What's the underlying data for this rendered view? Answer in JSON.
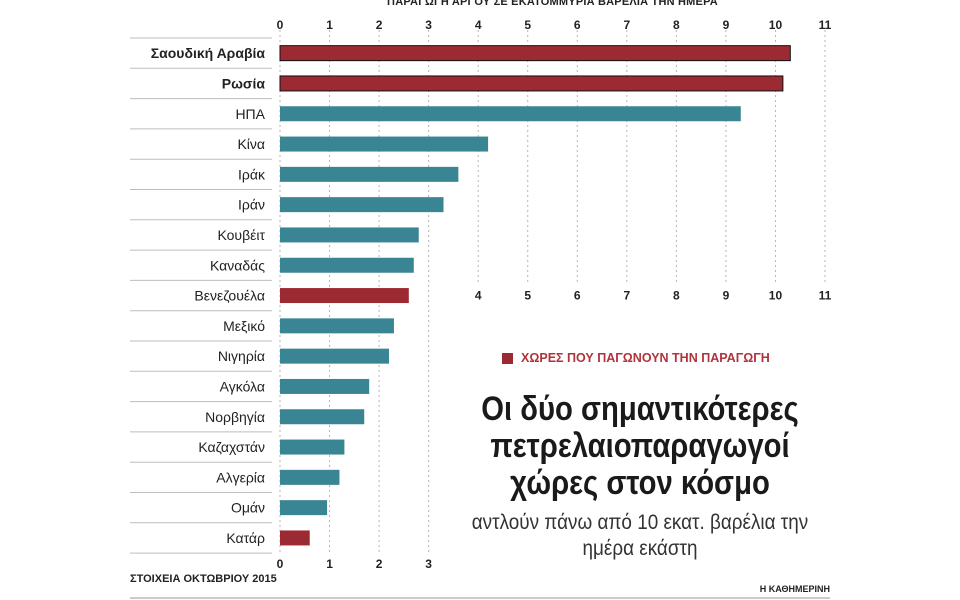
{
  "chart_data": {
    "type": "bar",
    "orientation": "horizontal",
    "xlabel": "ΠΑΡΑΓΩΓΗ ΑΡΓΟΥ ΣΕ ΕΚΑΤΟΜΜΥΡΙΑ ΒΑΡΕΛΙΑ ΤΗΝ ΗΜΕΡΑ",
    "xlim": [
      0,
      11
    ],
    "xticks": [
      0,
      1,
      2,
      3,
      4,
      5,
      6,
      7,
      8,
      9,
      10,
      11
    ],
    "categories": [
      "Σαουδική Αραβία",
      "Ρωσία",
      "ΗΠΑ",
      "Κίνα",
      "Ιράκ",
      "Ιράν",
      "Κουβέιτ",
      "Καναδάς",
      "Βενεζουέλα",
      "Μεξικό",
      "Νιγηρία",
      "Αγκόλα",
      "Νορβηγία",
      "Καζαχστάν",
      "Αλγερία",
      "Ομάν",
      "Κατάρ"
    ],
    "values": [
      10.3,
      10.15,
      9.3,
      4.2,
      3.6,
      3.3,
      2.8,
      2.7,
      2.6,
      2.3,
      2.2,
      1.8,
      1.7,
      1.3,
      1.2,
      0.95,
      0.6
    ],
    "freezing": [
      true,
      true,
      false,
      false,
      false,
      false,
      false,
      false,
      true,
      false,
      false,
      false,
      false,
      false,
      false,
      false,
      true
    ],
    "bold_labels": [
      true,
      true,
      false,
      false,
      false,
      false,
      false,
      false,
      false,
      false,
      false,
      false,
      false,
      false,
      false,
      false,
      false
    ],
    "grid": true,
    "colors": {
      "normal": "#3a8593",
      "freezing": "#9b2a33"
    }
  },
  "legend": {
    "label": "ΧΩΡΕΣ ΠΟΥ ΠΑΓΩΝΟΥΝ ΤΗΝ ΠΑΡΑΓΩΓΗ"
  },
  "headline": "Οι δύο σημαντικότερες πετρελαιοπαραγωγοί χώρες στον κόσμο",
  "subhead": "αντλούν πάνω από 10 εκατ. βαρέλια την ημέρα εκάστη",
  "source": "ΣΤΟΙΧΕΙΑ ΟΚΤΩΒΡΙΟΥ 2015",
  "credit": "Η ΚΑΘΗΜΕΡΙΝΗ"
}
